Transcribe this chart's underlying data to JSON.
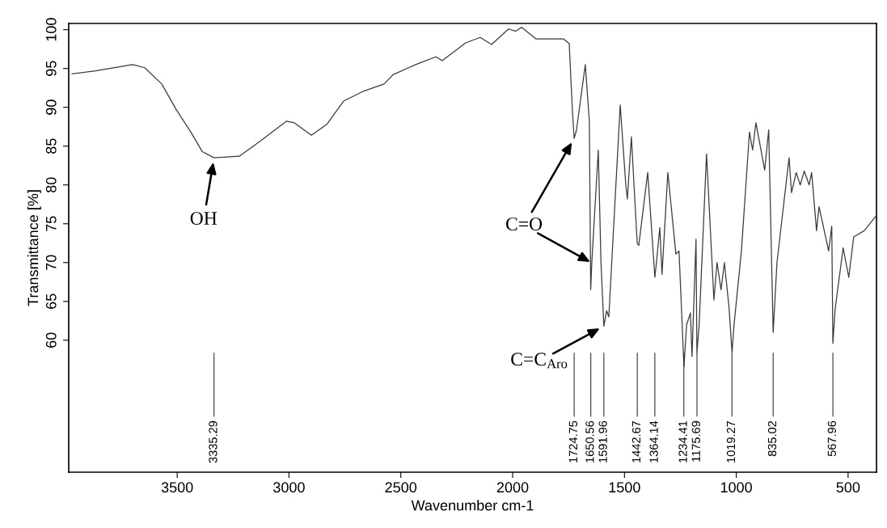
{
  "chart_data": {
    "type": "line",
    "xlabel": "Wavenumber cm-1",
    "ylabel": "Transmittance [%]",
    "xlim": [
      3985,
      373
    ],
    "ylim": [
      43,
      100.8
    ],
    "xticks": [
      3500,
      3000,
      2500,
      2000,
      1500,
      1000,
      500
    ],
    "yticks": [
      60,
      65,
      70,
      75,
      80,
      85,
      90,
      95,
      100
    ],
    "grid": false,
    "legend": false,
    "series": [
      {
        "color": "#3a3a3a",
        "x": [
          3970,
          3865,
          3699,
          3645,
          3569,
          3504,
          3439,
          3388,
          3335,
          3222,
          3131,
          3012,
          2976,
          2900,
          2831,
          2756,
          2665,
          2575,
          2535,
          2434,
          2343,
          2315,
          2210,
          2145,
          2094,
          2018,
          1986,
          1960,
          1895,
          1772,
          1747,
          1733,
          1725,
          1715,
          1675,
          1657,
          1651,
          1646,
          1617,
          1605,
          1592,
          1580,
          1570,
          1519,
          1494,
          1487,
          1469,
          1443,
          1436,
          1396,
          1364,
          1357,
          1342,
          1332,
          1306,
          1270,
          1256,
          1234,
          1222,
          1205,
          1198,
          1180,
          1176,
          1166,
          1133,
          1100,
          1086,
          1068,
          1053,
          1032,
          1019,
          1010,
          977,
          941,
          927,
          912,
          873,
          855,
          835,
          818,
          764,
          753,
          732,
          714,
          696,
          674,
          663,
          641,
          630,
          587,
          573,
          568,
          558,
          522,
          497,
          475,
          428,
          378
        ],
        "values": [
          94.3,
          94.7,
          95.5,
          95.1,
          93.0,
          89.7,
          86.8,
          84.3,
          83.5,
          83.7,
          85.6,
          88.2,
          88.0,
          86.4,
          87.8,
          90.8,
          92.1,
          93.0,
          94.2,
          95.5,
          96.5,
          96.0,
          98.3,
          99.0,
          98.1,
          100.1,
          99.8,
          100.3,
          98.8,
          98.8,
          98.2,
          89.7,
          86.0,
          87.0,
          95.5,
          88.2,
          66.5,
          70.0,
          84.5,
          70.0,
          61.8,
          63.8,
          63.0,
          90.3,
          80.0,
          78.2,
          86.2,
          72.5,
          72.2,
          81.6,
          68.1,
          70.0,
          74.5,
          68.5,
          81.6,
          71.1,
          71.5,
          56.6,
          62.0,
          63.5,
          57.9,
          73.0,
          58.4,
          62.0,
          84.0,
          65.2,
          70.0,
          66.5,
          70.0,
          64.1,
          58.4,
          62.0,
          71.5,
          86.8,
          84.5,
          88.0,
          81.9,
          87.1,
          61.0,
          70.0,
          83.5,
          79.0,
          81.6,
          80.0,
          81.8,
          80.0,
          81.6,
          74.1,
          77.2,
          71.5,
          74.7,
          59.6,
          64.0,
          71.9,
          68.1,
          73.3,
          74.1,
          75.9
        ]
      }
    ],
    "annotations": [
      {
        "text": "OH",
        "x": 3335,
        "y": 83.5
      },
      {
        "text": "C=O",
        "x": 1725,
        "y": 86.0
      },
      {
        "text": "C=C$_{Aro}$",
        "x": 1592,
        "y": 61.8
      },
      {
        "text": "3335.29",
        "x": 3335.29
      },
      {
        "text": "1724.75",
        "x": 1724.75
      },
      {
        "text": "1650.56",
        "x": 1650.56
      },
      {
        "text": "1591.96",
        "x": 1591.96
      },
      {
        "text": "1442.67",
        "x": 1442.67
      },
      {
        "text": "1364.14",
        "x": 1364.14
      },
      {
        "text": "1234.41",
        "x": 1234.41
      },
      {
        "text": "1175.69",
        "x": 1175.69
      },
      {
        "text": "1019.27",
        "x": 1019.27
      },
      {
        "text": "835.02",
        "x": 835.02
      },
      {
        "text": "567.96",
        "x": 567.96
      }
    ]
  }
}
